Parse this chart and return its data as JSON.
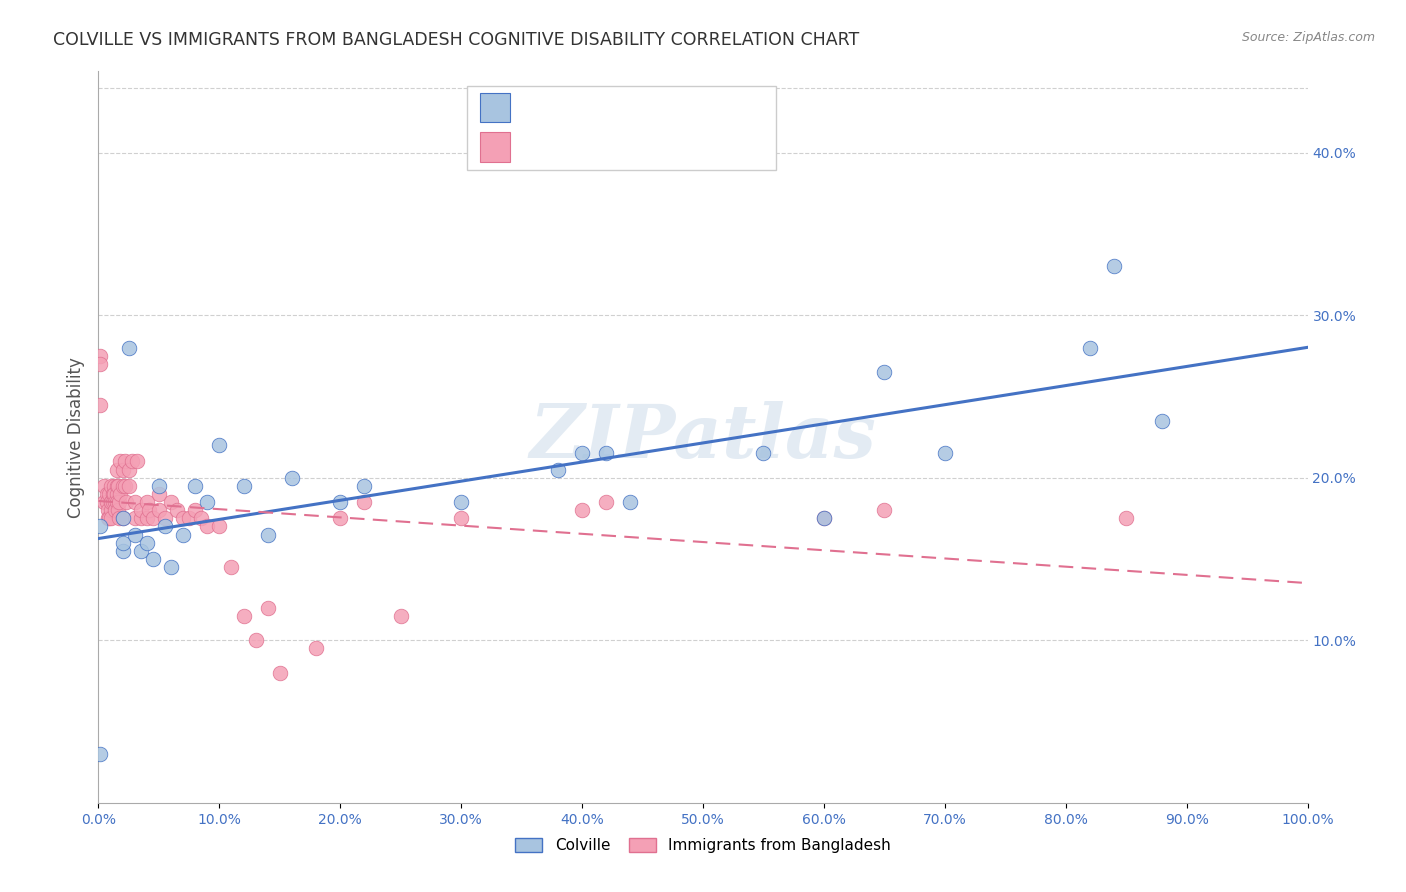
{
  "title": "COLVILLE VS IMMIGRANTS FROM BANGLADESH COGNITIVE DISABILITY CORRELATION CHART",
  "source": "Source: ZipAtlas.com",
  "ylabel": "Cognitive Disability",
  "ylabel_right_ticks": [
    "10.0%",
    "20.0%",
    "30.0%",
    "40.0%"
  ],
  "ylabel_right_vals": [
    0.1,
    0.2,
    0.3,
    0.4
  ],
  "x_range": [
    0.0,
    1.0
  ],
  "y_range": [
    0.0,
    0.45
  ],
  "watermark": "ZIPatlas",
  "color_blue": "#a8c4e0",
  "color_pink": "#f4a0b5",
  "color_blue_dark": "#4472c4",
  "color_pink_dark": "#e07090",
  "colville_x": [
    0.001,
    0.001,
    0.02,
    0.02,
    0.02,
    0.025,
    0.03,
    0.035,
    0.04,
    0.045,
    0.05,
    0.055,
    0.06,
    0.07,
    0.08,
    0.09,
    0.1,
    0.12,
    0.14,
    0.16,
    0.2,
    0.22,
    0.3,
    0.38,
    0.4,
    0.42,
    0.44,
    0.55,
    0.6,
    0.65,
    0.7,
    0.82,
    0.84,
    0.88
  ],
  "colville_y": [
    0.17,
    0.03,
    0.155,
    0.175,
    0.16,
    0.28,
    0.165,
    0.155,
    0.16,
    0.15,
    0.195,
    0.17,
    0.145,
    0.165,
    0.195,
    0.185,
    0.22,
    0.195,
    0.165,
    0.2,
    0.185,
    0.195,
    0.185,
    0.205,
    0.215,
    0.215,
    0.185,
    0.215,
    0.175,
    0.265,
    0.215,
    0.28,
    0.33,
    0.235
  ],
  "bangladesh_x": [
    0.001,
    0.001,
    0.001,
    0.005,
    0.005,
    0.007,
    0.007,
    0.008,
    0.008,
    0.009,
    0.009,
    0.01,
    0.01,
    0.01,
    0.01,
    0.01,
    0.012,
    0.012,
    0.013,
    0.013,
    0.014,
    0.014,
    0.015,
    0.015,
    0.015,
    0.015,
    0.016,
    0.016,
    0.017,
    0.017,
    0.018,
    0.018,
    0.02,
    0.02,
    0.02,
    0.022,
    0.022,
    0.023,
    0.025,
    0.025,
    0.028,
    0.03,
    0.03,
    0.032,
    0.035,
    0.035,
    0.04,
    0.04,
    0.042,
    0.045,
    0.05,
    0.05,
    0.055,
    0.06,
    0.065,
    0.07,
    0.075,
    0.08,
    0.085,
    0.09,
    0.1,
    0.11,
    0.12,
    0.13,
    0.14,
    0.15,
    0.18,
    0.2,
    0.22,
    0.25,
    0.3,
    0.4,
    0.42,
    0.6,
    0.65,
    0.85
  ],
  "bangladesh_y": [
    0.275,
    0.27,
    0.245,
    0.195,
    0.185,
    0.19,
    0.185,
    0.18,
    0.175,
    0.19,
    0.175,
    0.195,
    0.185,
    0.18,
    0.185,
    0.175,
    0.19,
    0.185,
    0.195,
    0.19,
    0.185,
    0.18,
    0.205,
    0.195,
    0.19,
    0.185,
    0.195,
    0.18,
    0.185,
    0.175,
    0.21,
    0.19,
    0.195,
    0.205,
    0.175,
    0.21,
    0.195,
    0.185,
    0.205,
    0.195,
    0.21,
    0.185,
    0.175,
    0.21,
    0.175,
    0.18,
    0.185,
    0.175,
    0.18,
    0.175,
    0.19,
    0.18,
    0.175,
    0.185,
    0.18,
    0.175,
    0.175,
    0.18,
    0.175,
    0.17,
    0.17,
    0.145,
    0.115,
    0.1,
    0.12,
    0.08,
    0.095,
    0.175,
    0.185,
    0.115,
    0.175,
    0.18,
    0.185,
    0.175,
    0.18,
    0.175
  ]
}
